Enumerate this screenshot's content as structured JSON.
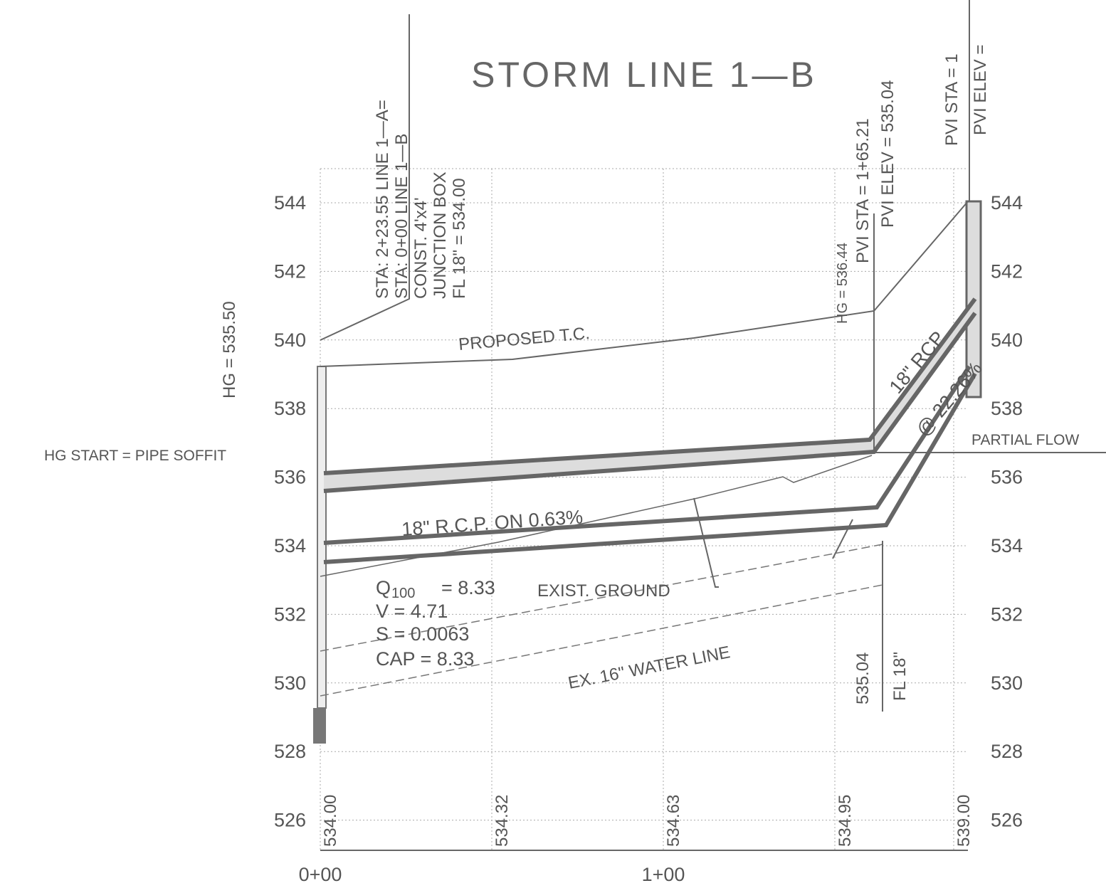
{
  "title": "STORM LINE 1—B",
  "elevation_ticks": [
    544,
    542,
    540,
    538,
    536,
    534,
    532,
    530,
    528,
    526
  ],
  "stations": [
    "0+00",
    "1+00"
  ],
  "profile_elevations": [
    "534.00",
    "534.32",
    "534.63",
    "534.95",
    "539.00"
  ],
  "junction_box": [
    "STA:  2+23.55 LINE 1—A=",
    "STA:  0+00 LINE 1—B",
    "CONST. 4'x4'",
    "JUNCTION BOX",
    "FL 18\" = 534.00"
  ],
  "hg_left": "HG = 535.50",
  "hg_start": "HG START = PIPE SOFFIT",
  "proposed_tc": "PROPOSED T.C.",
  "pipe_label": "18\" R.C.P. ON 0.63%",
  "flow": {
    "q": "Q",
    "q_sub": "100",
    "q_value": "=  8.33",
    "v": "V  =  4.71",
    "s": "S  =  0.0063",
    "cap": "CAP  =  8.33"
  },
  "exist_ground": "EXIST. GROUND",
  "water_line": "EX. 16\" WATER LINE",
  "hg_right": "HG = 536.44",
  "pvi_1": [
    "PVI  STA  =  1+65.21",
    "PVI  ELEV  =  535.04"
  ],
  "pvi_2": [
    "PVI STA  =  1",
    "PVI ELEV  ="
  ],
  "steep_pipe": [
    "18\" RCP",
    "@ 22.26%"
  ],
  "partial_flow": "PARTIAL FLOW",
  "fl_note": [
    "535.04",
    "FL 18\""
  ]
}
